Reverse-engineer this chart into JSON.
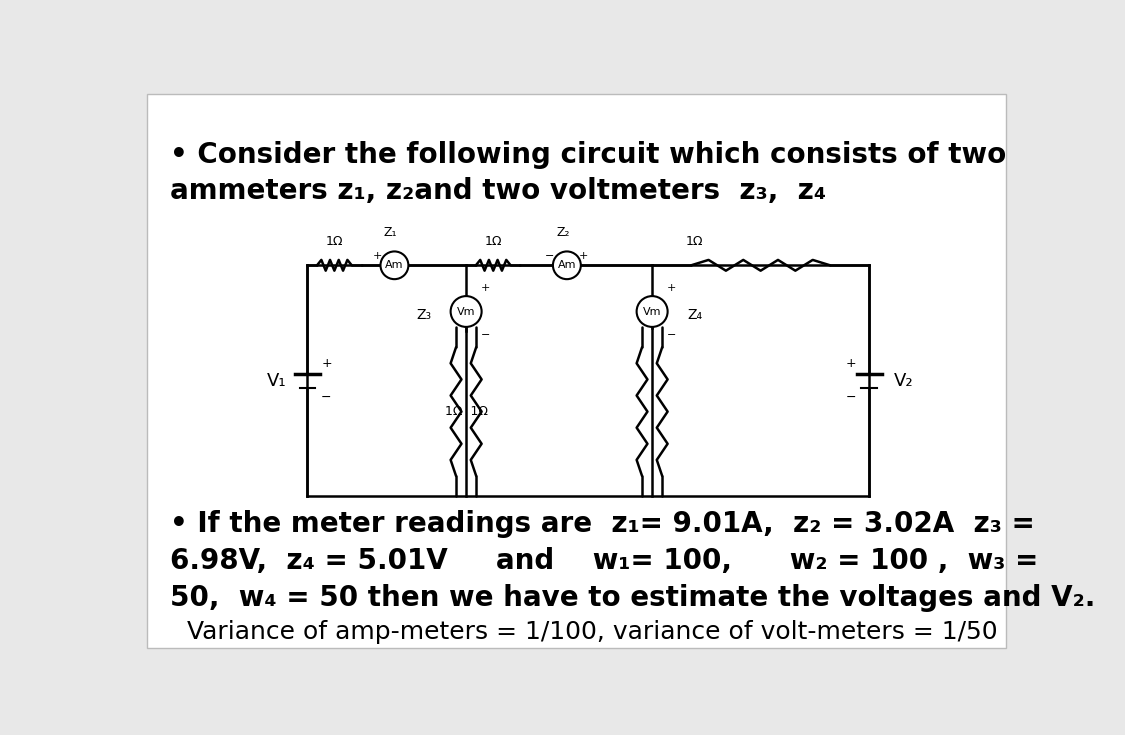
{
  "bg_color": "#e8e8e8",
  "panel_color": "#ffffff",
  "title_bullet": "• Consider the following circuit which consists of two",
  "title_line2": "ammeters z₁, z₂and two voltmeters  z₃,  z₄",
  "body_line1": "• If the meter readings are  z₁= 9.01A,  z₂ = 3.02A  z₃ =",
  "body_line2": "6.98V,  z₄ = 5.01V     and    w₁= 100,      w₂ = 100 ,  w₃ =",
  "body_line3": "50,  w₄ = 50 then we have to estimate the voltages and V₂.",
  "variance_text": "Variance of amp-meters = 1/100, variance of volt-meters = 1/50",
  "font_size_title": 20,
  "font_size_body": 20,
  "font_size_variance": 18
}
